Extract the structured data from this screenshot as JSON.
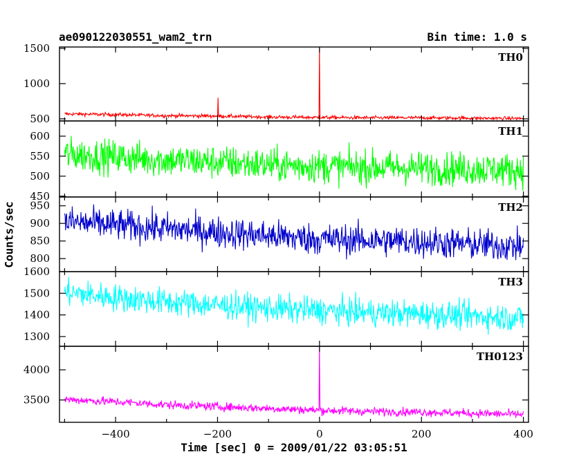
{
  "chart_data": [
    {
      "type": "line",
      "label": "TH0",
      "color": "#ff0000",
      "xlim": [
        -510,
        410
      ],
      "ylim": [
        470,
        1520
      ],
      "yticks": [
        500,
        1000,
        1500
      ],
      "baseline": [
        [
          -500,
          570
        ],
        [
          -400,
          560
        ],
        [
          -300,
          545
        ],
        [
          -200,
          540
        ],
        [
          -100,
          525
        ],
        [
          0,
          520
        ],
        [
          100,
          515
        ],
        [
          200,
          515
        ],
        [
          300,
          510
        ],
        [
          400,
          505
        ]
      ],
      "noise": 18,
      "spikes": [
        [
          -199,
          800
        ],
        [
          0,
          1520
        ]
      ]
    },
    {
      "type": "line",
      "label": "TH1",
      "color": "#00ff00",
      "xlim": [
        -510,
        410
      ],
      "ylim": [
        448,
        638
      ],
      "yticks": [
        450,
        500,
        550,
        600
      ],
      "baseline": [
        [
          -500,
          555
        ],
        [
          -400,
          548
        ],
        [
          -300,
          540
        ],
        [
          -200,
          535
        ],
        [
          -100,
          528
        ],
        [
          0,
          525
        ],
        [
          100,
          522
        ],
        [
          200,
          520
        ],
        [
          300,
          518
        ],
        [
          400,
          515
        ]
      ],
      "noise": 30,
      "spikes": []
    },
    {
      "type": "line",
      "label": "TH2",
      "color": "#0000cc",
      "xlim": [
        -510,
        410
      ],
      "ylim": [
        763,
        975
      ],
      "yticks": [
        800,
        850,
        900,
        950
      ],
      "baseline": [
        [
          -500,
          905
        ],
        [
          -400,
          895
        ],
        [
          -300,
          885
        ],
        [
          -200,
          875
        ],
        [
          -100,
          865
        ],
        [
          0,
          855
        ],
        [
          100,
          852
        ],
        [
          200,
          848
        ],
        [
          300,
          840
        ],
        [
          400,
          835
        ]
      ],
      "noise": 32,
      "spikes": []
    },
    {
      "type": "line",
      "label": "TH3",
      "color": "#00ffff",
      "xlim": [
        -510,
        410
      ],
      "ylim": [
        1255,
        1600
      ],
      "yticks": [
        1300,
        1400,
        1500,
        1600
      ],
      "baseline": [
        [
          -500,
          1505
        ],
        [
          -400,
          1480
        ],
        [
          -300,
          1460
        ],
        [
          -200,
          1445
        ],
        [
          -100,
          1430
        ],
        [
          0,
          1420
        ],
        [
          100,
          1410
        ],
        [
          200,
          1405
        ],
        [
          300,
          1395
        ],
        [
          400,
          1385
        ]
      ],
      "noise": 45,
      "spikes": []
    },
    {
      "type": "line",
      "label": "TH0123",
      "color": "#ff00ff",
      "xlim": [
        -510,
        410
      ],
      "ylim": [
        3130,
        4390
      ],
      "yticks": [
        3500,
        4000
      ],
      "xticks": [
        -400,
        -200,
        0,
        200,
        400
      ],
      "baseline": [
        [
          -500,
          3510
        ],
        [
          -400,
          3470
        ],
        [
          -300,
          3420
        ],
        [
          -200,
          3390
        ],
        [
          -100,
          3360
        ],
        [
          0,
          3330
        ],
        [
          100,
          3310
        ],
        [
          200,
          3300
        ],
        [
          300,
          3280
        ],
        [
          400,
          3260
        ]
      ],
      "noise": 50,
      "spikes": [
        [
          0,
          4390
        ]
      ]
    }
  ],
  "header": {
    "title": "ae090122030551_wam2_trn",
    "bin_time": "Bin time: 1.0 s"
  },
  "axes": {
    "xlabel": "Time [sec] 0 = 2009/01/22 03:05:51",
    "ylabel": "Counts/sec"
  }
}
